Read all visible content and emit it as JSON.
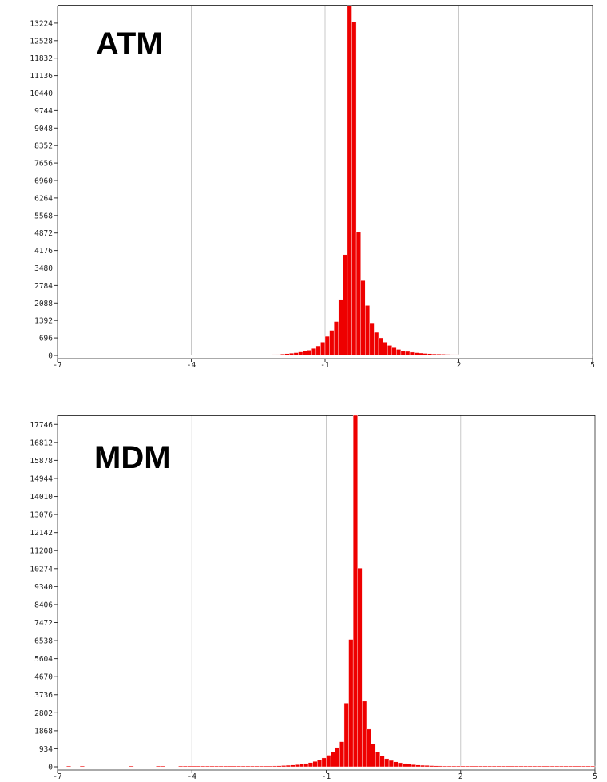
{
  "chart_data": [
    {
      "type": "bar",
      "title": "ATM",
      "xlim": [
        -7,
        5
      ],
      "ylim": [
        0,
        13920
      ],
      "x_ticks": [
        "-7",
        "-4",
        "-1",
        "2",
        "5"
      ],
      "y_ticks": [
        "0",
        "696",
        "1392",
        "2088",
        "2784",
        "3480",
        "4176",
        "4872",
        "5568",
        "6264",
        "6960",
        "7656",
        "8352",
        "9048",
        "9744",
        "10440",
        "11136",
        "11832",
        "12528",
        "13224"
      ],
      "grid": "vertical",
      "bin_width": 0.1,
      "series": [
        {
          "x": [
            -3.5,
            -3.4,
            -3.3,
            -3.2,
            -3.1,
            -3.0,
            -2.9,
            -2.8,
            -2.7,
            -2.6,
            -2.5,
            -2.4,
            -2.3,
            -2.2,
            -2.1,
            -2.0,
            -1.9,
            -1.8,
            -1.7,
            -1.6,
            -1.5,
            -1.4,
            -1.3,
            -1.2,
            -1.1,
            -1.0,
            -0.9,
            -0.8,
            -0.7,
            -0.6,
            -0.5,
            -0.4,
            -0.3,
            -0.2,
            -0.1,
            0.0,
            0.1,
            0.2,
            0.3,
            0.4,
            0.5,
            0.6,
            0.7,
            0.8,
            0.9,
            1.0,
            1.1,
            1.2,
            1.3,
            1.4,
            1.5,
            1.6,
            1.7,
            1.8,
            1.9,
            2.0,
            2.1,
            2.2,
            2.3,
            2.4,
            2.5,
            2.6,
            2.7,
            2.8,
            2.9,
            3.0,
            3.1,
            3.2,
            3.3,
            3.4,
            3.5,
            3.6,
            3.7,
            3.8,
            3.9,
            4.0,
            4.1,
            4.2,
            4.3,
            4.4,
            4.5,
            4.6,
            4.7,
            4.8,
            4.9
          ],
          "values": [
            10,
            10,
            12,
            12,
            10,
            10,
            10,
            12,
            15,
            15,
            20,
            25,
            30,
            35,
            40,
            55,
            70,
            90,
            110,
            140,
            170,
            210,
            280,
            380,
            530,
            760,
            1000,
            1350,
            2230,
            4010,
            13920,
            13260,
            4900,
            2980,
            1990,
            1300,
            920,
            700,
            530,
            400,
            310,
            240,
            190,
            160,
            130,
            110,
            95,
            80,
            70,
            60,
            55,
            50,
            45,
            40,
            35,
            30,
            28,
            25,
            22,
            20,
            18,
            16,
            15,
            14,
            13,
            12,
            12,
            11,
            10,
            10,
            10,
            10,
            9,
            9,
            8,
            8,
            8,
            8,
            7,
            7,
            6,
            6,
            5,
            5,
            5
          ]
        }
      ]
    },
    {
      "type": "bar",
      "title": "MDM",
      "xlim": [
        -7,
        5
      ],
      "ylim": [
        0,
        18213
      ],
      "x_ticks": [
        "-7",
        "-4",
        "-1",
        "2",
        "5"
      ],
      "y_ticks": [
        "0",
        "934",
        "1868",
        "2802",
        "3736",
        "4670",
        "5604",
        "6538",
        "7472",
        "8406",
        "9340",
        "10274",
        "11208",
        "12142",
        "13076",
        "14010",
        "14944",
        "15878",
        "16812",
        "17746"
      ],
      "grid": "vertical",
      "bin_width": 0.1,
      "series": [
        {
          "x": [
            -6.8,
            -6.5,
            -5.4,
            -4.8,
            -4.7,
            -4.3,
            -4.2,
            -4.1,
            -4.0,
            -3.9,
            -3.8,
            -3.7,
            -3.6,
            -3.5,
            -3.4,
            -3.3,
            -3.2,
            -3.1,
            -3.0,
            -2.9,
            -2.8,
            -2.7,
            -2.6,
            -2.5,
            -2.4,
            -2.3,
            -2.2,
            -2.1,
            -2.0,
            -1.9,
            -1.8,
            -1.7,
            -1.6,
            -1.5,
            -1.4,
            -1.3,
            -1.2,
            -1.1,
            -1.0,
            -0.9,
            -0.8,
            -0.7,
            -0.6,
            -0.5,
            -0.4,
            -0.3,
            -0.2,
            -0.1,
            0.0,
            0.1,
            0.2,
            0.3,
            0.4,
            0.5,
            0.6,
            0.7,
            0.8,
            0.9,
            1.0,
            1.1,
            1.2,
            1.3,
            1.4,
            1.5,
            1.6,
            1.7,
            1.8,
            1.9,
            2.0,
            2.1,
            2.2,
            2.3,
            2.4,
            2.5,
            2.6,
            2.7,
            2.8,
            2.9,
            3.0,
            3.1,
            3.2,
            3.3,
            3.4,
            3.5,
            3.6,
            3.7,
            3.8,
            3.9,
            4.0,
            4.1,
            4.2,
            4.3,
            4.4,
            4.5,
            4.6,
            4.7,
            4.8,
            4.9
          ],
          "values": [
            5,
            5,
            5,
            8,
            8,
            10,
            10,
            10,
            10,
            12,
            12,
            12,
            12,
            14,
            14,
            15,
            15,
            16,
            18,
            20,
            22,
            25,
            28,
            30,
            35,
            40,
            45,
            55,
            65,
            80,
            95,
            115,
            140,
            175,
            220,
            280,
            360,
            460,
            600,
            780,
            1000,
            1300,
            3300,
            6600,
            18213,
            10300,
            3400,
            1950,
            1200,
            780,
            560,
            420,
            330,
            260,
            210,
            170,
            140,
            115,
            95,
            80,
            70,
            60,
            52,
            45,
            40,
            35,
            31,
            28,
            25,
            22,
            20,
            18,
            16,
            15,
            14,
            13,
            12,
            11,
            10,
            10,
            9,
            9,
            8,
            8,
            8,
            7,
            7,
            7,
            6,
            6,
            6,
            5,
            5,
            5,
            5,
            5,
            5,
            5
          ]
        }
      ]
    }
  ]
}
